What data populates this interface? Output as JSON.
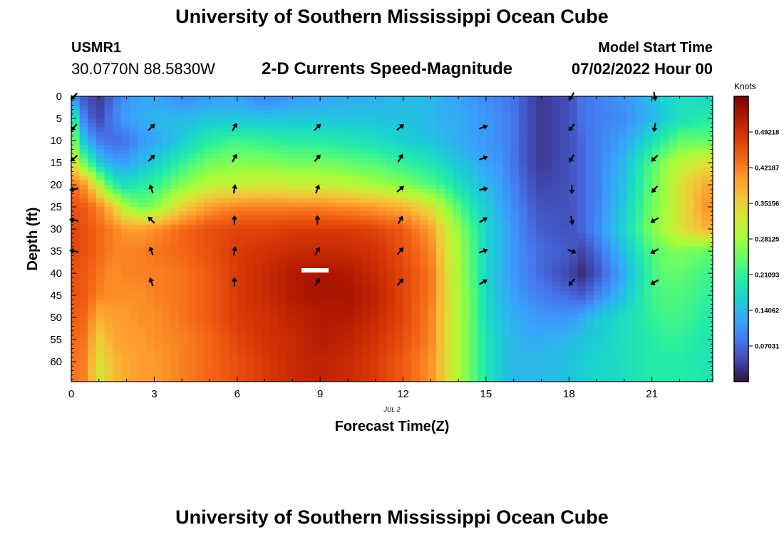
{
  "page": {
    "title": "University of Southern Mississippi Ocean Cube",
    "title_repeat": "University of Southern Mississippi Ocean Cube",
    "station_id": "USMR1",
    "coordinates": "30.0770N  88.5830W",
    "subtitle": "2-D Currents Speed-Magnitude",
    "model_start_label": "Model Start Time",
    "model_start_value": "07/02/2022 Hour 00"
  },
  "chart_data": {
    "type": "heatmap",
    "title": "2-D Currents Speed-Magnitude",
    "xlabel": "Forecast Time(Z)",
    "ylabel": "Depth (ft)",
    "date_label": "JUL 2",
    "colorbar_label": "Knots",
    "xlim": [
      0,
      23.2
    ],
    "ylim": [
      0,
      64.5
    ],
    "y_inverted": true,
    "x_ticks": [
      0,
      3,
      6,
      9,
      12,
      15,
      18,
      21
    ],
    "y_ticks": [
      0,
      5,
      10,
      15,
      20,
      25,
      30,
      35,
      40,
      45,
      50,
      55,
      60
    ],
    "colorbar_ticks": [
      "0.07031",
      "0.14062",
      "0.21093",
      "0.28125",
      "0.35156",
      "0.42187",
      "0.49218"
    ],
    "colorbar_range": [
      0,
      0.5625
    ],
    "colormap": [
      "#30123b",
      "#4145ab",
      "#4675ed",
      "#39a2fc",
      "#1bcfd4",
      "#24eca6",
      "#61fc6c",
      "#a4fc3b",
      "#d1e834",
      "#f3c63a",
      "#fe9b2d",
      "#f36315",
      "#d93806",
      "#b11901",
      "#7a0403"
    ],
    "hours": [
      0,
      0.5,
      1,
      1.5,
      2,
      2.5,
      3,
      4,
      5,
      6,
      7,
      8,
      9,
      10,
      11,
      12,
      13,
      13.5,
      14,
      14.5,
      15,
      15.5,
      16,
      16.5,
      17,
      18,
      18.5,
      19,
      20,
      21,
      21.5,
      22,
      23
    ],
    "depths_ft": [
      0,
      5,
      10,
      15,
      20,
      25,
      30,
      35,
      40,
      45,
      50,
      55,
      60,
      65
    ],
    "speed_knots": [
      [
        0.1,
        0.05,
        0.03,
        0.07,
        0.11,
        0.12,
        0.12,
        0.1,
        0.11,
        0.12,
        0.09,
        0.11,
        0.12,
        0.13,
        0.13,
        0.14,
        0.14,
        0.13,
        0.12,
        0.11,
        0.1,
        0.09,
        0.08,
        0.05,
        0.03,
        0.05,
        0.08,
        0.09,
        0.11,
        0.14,
        0.17,
        0.18,
        0.17
      ],
      [
        0.24,
        0.08,
        0.04,
        0.09,
        0.12,
        0.13,
        0.14,
        0.14,
        0.15,
        0.15,
        0.15,
        0.15,
        0.15,
        0.15,
        0.15,
        0.15,
        0.14,
        0.13,
        0.13,
        0.12,
        0.11,
        0.1,
        0.08,
        0.05,
        0.03,
        0.05,
        0.08,
        0.09,
        0.1,
        0.14,
        0.16,
        0.18,
        0.2
      ],
      [
        0.28,
        0.14,
        0.09,
        0.07,
        0.08,
        0.11,
        0.12,
        0.16,
        0.2,
        0.22,
        0.21,
        0.2,
        0.2,
        0.19,
        0.18,
        0.16,
        0.15,
        0.14,
        0.13,
        0.12,
        0.11,
        0.1,
        0.08,
        0.05,
        0.03,
        0.05,
        0.07,
        0.09,
        0.12,
        0.18,
        0.21,
        0.24,
        0.24
      ],
      [
        0.34,
        0.24,
        0.16,
        0.12,
        0.12,
        0.14,
        0.16,
        0.21,
        0.25,
        0.26,
        0.26,
        0.25,
        0.25,
        0.24,
        0.23,
        0.21,
        0.19,
        0.17,
        0.15,
        0.14,
        0.12,
        0.11,
        0.08,
        0.05,
        0.03,
        0.05,
        0.07,
        0.09,
        0.14,
        0.23,
        0.27,
        0.3,
        0.33
      ],
      [
        0.44,
        0.4,
        0.3,
        0.2,
        0.18,
        0.2,
        0.21,
        0.26,
        0.3,
        0.31,
        0.32,
        0.31,
        0.31,
        0.3,
        0.28,
        0.26,
        0.23,
        0.21,
        0.18,
        0.16,
        0.14,
        0.12,
        0.09,
        0.06,
        0.04,
        0.05,
        0.07,
        0.09,
        0.15,
        0.24,
        0.28,
        0.33,
        0.39
      ],
      [
        0.46,
        0.45,
        0.42,
        0.36,
        0.28,
        0.25,
        0.26,
        0.35,
        0.4,
        0.42,
        0.42,
        0.42,
        0.42,
        0.41,
        0.4,
        0.38,
        0.33,
        0.28,
        0.23,
        0.19,
        0.16,
        0.13,
        0.1,
        0.07,
        0.05,
        0.05,
        0.07,
        0.09,
        0.16,
        0.25,
        0.28,
        0.33,
        0.41
      ],
      [
        0.47,
        0.46,
        0.44,
        0.42,
        0.4,
        0.4,
        0.41,
        0.44,
        0.46,
        0.47,
        0.47,
        0.48,
        0.48,
        0.48,
        0.47,
        0.45,
        0.4,
        0.33,
        0.27,
        0.22,
        0.17,
        0.14,
        0.11,
        0.08,
        0.06,
        0.05,
        0.07,
        0.1,
        0.17,
        0.26,
        0.29,
        0.33,
        0.38
      ],
      [
        0.47,
        0.46,
        0.44,
        0.42,
        0.42,
        0.42,
        0.43,
        0.44,
        0.46,
        0.48,
        0.49,
        0.5,
        0.5,
        0.5,
        0.49,
        0.46,
        0.42,
        0.34,
        0.28,
        0.23,
        0.17,
        0.14,
        0.11,
        0.09,
        0.07,
        0.06,
        0.04,
        0.07,
        0.15,
        0.23,
        0.25,
        0.26,
        0.24
      ],
      [
        0.46,
        0.45,
        0.43,
        0.41,
        0.42,
        0.42,
        0.42,
        0.43,
        0.45,
        0.48,
        0.5,
        0.52,
        0.53,
        0.52,
        0.5,
        0.47,
        0.43,
        0.35,
        0.28,
        0.23,
        0.17,
        0.14,
        0.11,
        0.09,
        0.07,
        0.04,
        0.02,
        0.05,
        0.13,
        0.22,
        0.24,
        0.24,
        0.22
      ],
      [
        0.46,
        0.45,
        0.42,
        0.41,
        0.41,
        0.41,
        0.42,
        0.43,
        0.45,
        0.48,
        0.5,
        0.52,
        0.53,
        0.53,
        0.51,
        0.47,
        0.43,
        0.35,
        0.29,
        0.24,
        0.18,
        0.14,
        0.12,
        0.1,
        0.09,
        0.07,
        0.06,
        0.09,
        0.15,
        0.22,
        0.23,
        0.23,
        0.21
      ],
      [
        0.45,
        0.44,
        0.38,
        0.4,
        0.4,
        0.41,
        0.41,
        0.43,
        0.45,
        0.48,
        0.49,
        0.51,
        0.52,
        0.52,
        0.5,
        0.47,
        0.42,
        0.35,
        0.29,
        0.24,
        0.18,
        0.15,
        0.13,
        0.12,
        0.11,
        0.11,
        0.13,
        0.15,
        0.18,
        0.21,
        0.22,
        0.22,
        0.2
      ],
      [
        0.44,
        0.43,
        0.35,
        0.39,
        0.4,
        0.4,
        0.41,
        0.42,
        0.44,
        0.47,
        0.49,
        0.5,
        0.52,
        0.51,
        0.49,
        0.46,
        0.42,
        0.35,
        0.29,
        0.24,
        0.19,
        0.16,
        0.14,
        0.13,
        0.13,
        0.14,
        0.15,
        0.16,
        0.18,
        0.2,
        0.21,
        0.21,
        0.19
      ],
      [
        0.43,
        0.42,
        0.33,
        0.37,
        0.39,
        0.4,
        0.4,
        0.42,
        0.44,
        0.46,
        0.48,
        0.5,
        0.51,
        0.5,
        0.48,
        0.45,
        0.41,
        0.35,
        0.29,
        0.24,
        0.19,
        0.16,
        0.14,
        0.14,
        0.14,
        0.15,
        0.16,
        0.17,
        0.18,
        0.2,
        0.2,
        0.2,
        0.19
      ],
      [
        0.43,
        0.42,
        0.32,
        0.37,
        0.39,
        0.4,
        0.4,
        0.42,
        0.44,
        0.46,
        0.48,
        0.5,
        0.51,
        0.5,
        0.48,
        0.45,
        0.41,
        0.35,
        0.29,
        0.24,
        0.19,
        0.16,
        0.14,
        0.14,
        0.14,
        0.15,
        0.16,
        0.17,
        0.18,
        0.2,
        0.2,
        0.2,
        0.19
      ]
    ],
    "current_vectors": {
      "times": [
        0.1,
        2.9,
        5.9,
        8.9,
        11.9,
        14.9,
        18.1,
        21.1
      ],
      "depths_ft": [
        0,
        7,
        14,
        21,
        28,
        35,
        42
      ],
      "direction_deg": [
        [
          135,
          null,
          null,
          null,
          null,
          null,
          120,
          80
        ],
        [
          130,
          315,
          300,
          315,
          320,
          340,
          130,
          100
        ],
        [
          140,
          315,
          300,
          310,
          300,
          340,
          120,
          135
        ],
        [
          170,
          250,
          280,
          290,
          320,
          350,
          90,
          130
        ],
        [
          190,
          225,
          270,
          270,
          300,
          330,
          80,
          150
        ],
        [
          190,
          250,
          280,
          300,
          310,
          340,
          20,
          150
        ],
        [
          null,
          250,
          270,
          300,
          310,
          330,
          130,
          150
        ]
      ]
    }
  }
}
